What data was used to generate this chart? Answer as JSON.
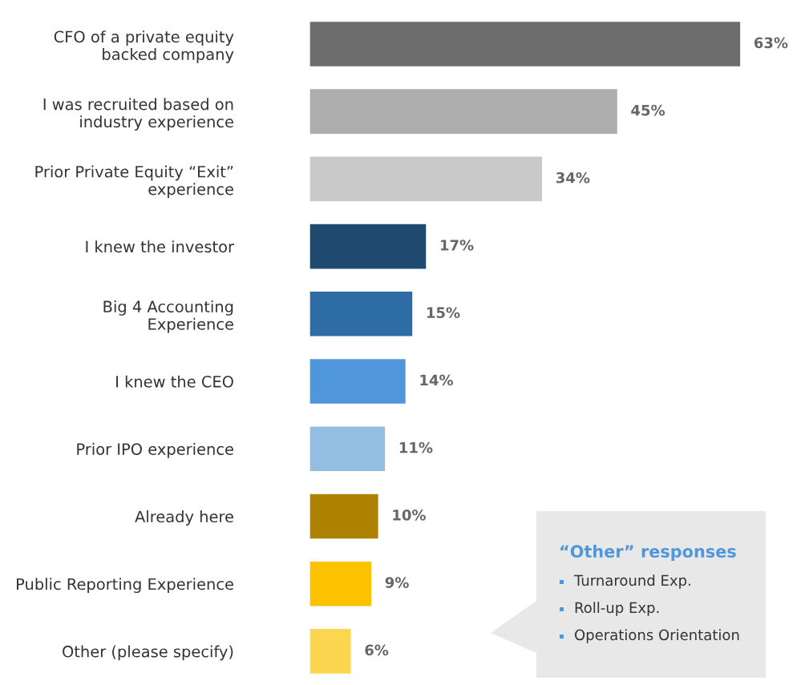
{
  "chart_data": {
    "type": "bar",
    "orientation": "horizontal",
    "tick_labels": "y",
    "categories": [
      "CFO of a private equity\nbacked company",
      "I was recruited based on\nindustry experience",
      "Prior Private Equity “Exit”\nexperience",
      "I knew the investor",
      "Big 4 Accounting\nExperience",
      "I knew the CEO",
      "Prior IPO experience",
      "Already here",
      "Public Reporting Experience",
      "Other (please specify)"
    ],
    "values": [
      63,
      45,
      34,
      17,
      15,
      14,
      11,
      10,
      9,
      6
    ],
    "colors": [
      "#6d6d6d",
      "#adadad",
      "#c9c9c9",
      "#1f4a70",
      "#2e6ca6",
      "#4f96db",
      "#94bde2",
      "#ae8200",
      "#fcc200",
      "#fdd650"
    ],
    "value_labels": [
      "63%",
      "45%",
      "34%",
      "17%",
      "15%",
      "14%",
      "11%",
      "10%",
      "9%",
      "6%"
    ],
    "annotations": [
      "“Other” responses",
      "Turnaround Exp.",
      "Roll-up Exp.",
      "Operations Orientation"
    ]
  }
}
